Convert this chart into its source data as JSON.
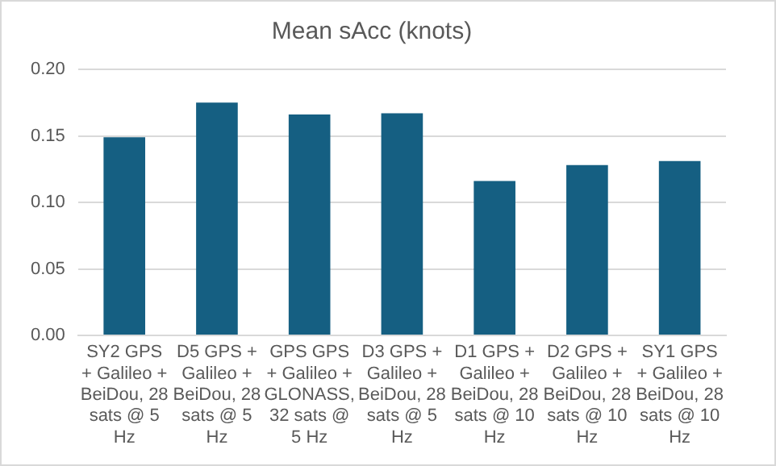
{
  "chart_data": {
    "type": "bar",
    "title": "Mean sAcc (knots)",
    "categories": [
      "SY2 GPS + Galileo + BeiDou, 28 sats @ 5 Hz",
      "D5 GPS + Galileo + BeiDou, 28 sats @ 5 Hz",
      "GPS GPS + Galileo + GLONASS, 32 sats @ 5 Hz",
      "D3 GPS + Galileo + BeiDou, 28 sats @ 5 Hz",
      "D1 GPS + Galileo + BeiDou, 28 sats @ 10 Hz",
      "D2 GPS + Galileo + BeiDou, 28 sats @ 10 Hz",
      "SY1 GPS + Galileo + BeiDou, 28 sats @ 10 Hz"
    ],
    "values": [
      0.149,
      0.175,
      0.166,
      0.167,
      0.116,
      0.128,
      0.131
    ],
    "color": "#155f82",
    "ylim": [
      0,
      0.2
    ],
    "yticks": [
      {
        "value": 0,
        "label": "0.00"
      },
      {
        "value": 0.05,
        "label": "0.05"
      },
      {
        "value": 0.1,
        "label": "0.10"
      },
      {
        "value": 0.15,
        "label": "0.15"
      },
      {
        "value": 0.2,
        "label": "0.20"
      }
    ],
    "grid": "y",
    "legend": false
  }
}
